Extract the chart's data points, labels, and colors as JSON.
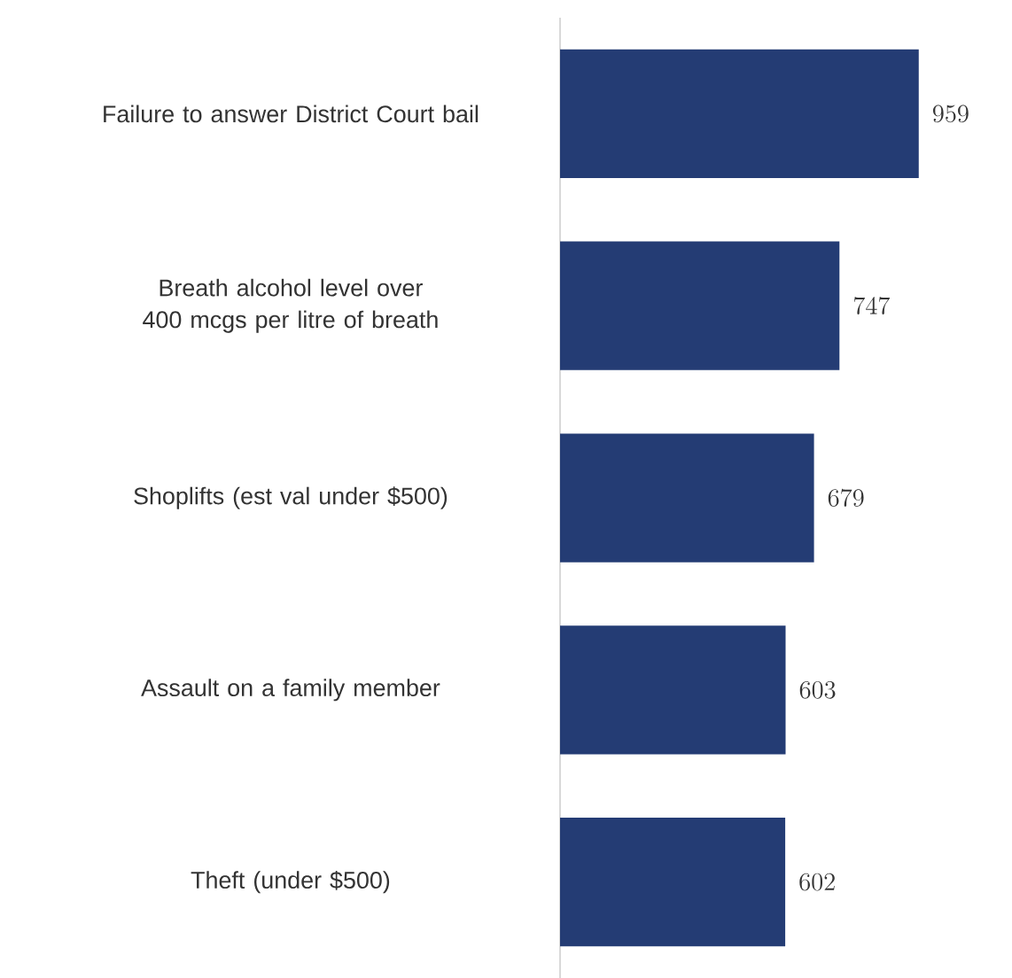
{
  "chart_data": {
    "type": "bar",
    "orientation": "horizontal",
    "categories": [
      "Failure to answer District Court bail",
      "Breath alcohol level over 400 mcgs per litre of breath",
      "Shoplifts (est val under $500)",
      "Assault on a family member",
      "Theft (under $500)"
    ],
    "values": [
      959,
      747,
      679,
      603,
      602
    ],
    "color": "#243c74",
    "data_labels": true
  }
}
